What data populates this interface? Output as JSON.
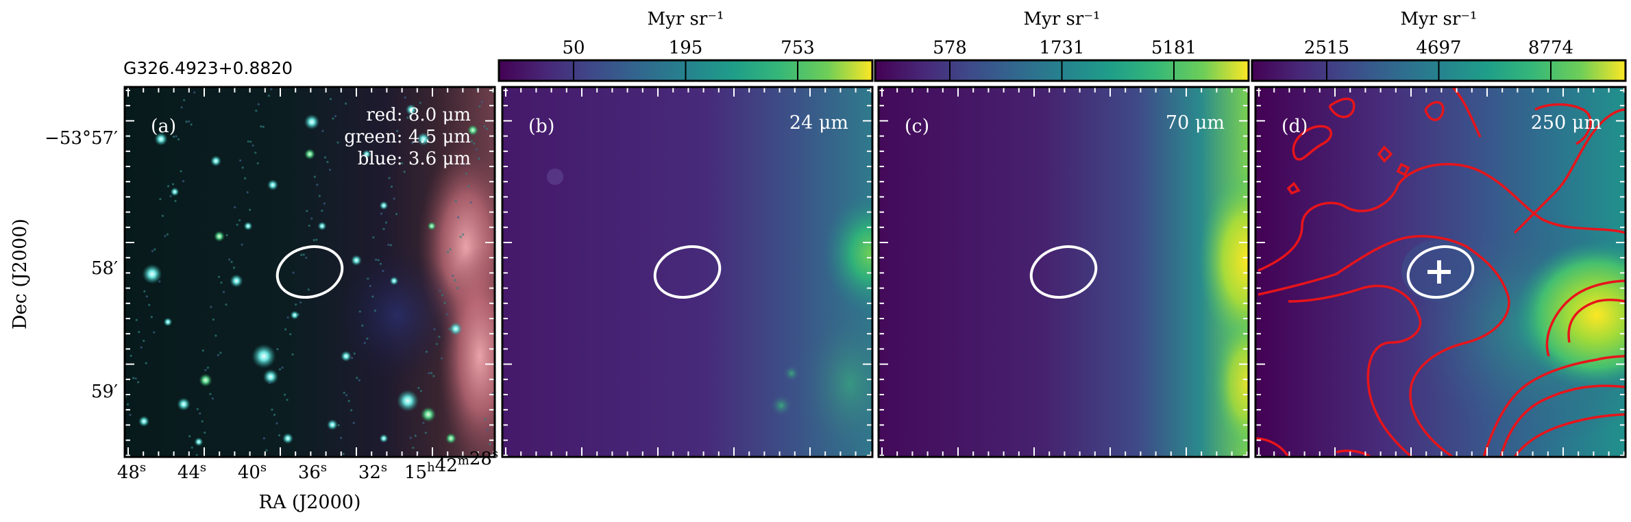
{
  "figure": {
    "source_name": "G326.4923+0.8820",
    "ra_axis_label": "RA (J2000)",
    "dec_axis_label": "Dec (J2000)",
    "ra_ticks": [
      {
        "main": "48",
        "sup": "s"
      },
      {
        "main": "44",
        "sup": "s"
      },
      {
        "main": "40",
        "sup": "s"
      },
      {
        "main": "36",
        "sup": "s"
      },
      {
        "main": "32",
        "sup": "s"
      },
      {
        "main": "15",
        "sup": "h",
        "main2": "42",
        "sup2": "m",
        "main3": "28",
        "sup3": "s"
      }
    ],
    "dec_ticks": [
      "−53°57′",
      "58′",
      "59′"
    ]
  },
  "colors": {
    "contour": "#e8141a",
    "ellipse": "#ffffff",
    "viridis_low": "#440154",
    "viridis_mid": "#21918c",
    "viridis_high": "#fde725"
  },
  "panels": [
    {
      "id": "a",
      "label": "(a)",
      "legend": [
        "red: 8.0 μm",
        "green: 4.5 μm",
        "blue: 3.6 μm"
      ],
      "image": "rgb-composite"
    },
    {
      "id": "b",
      "label": "(b)",
      "band": "24 μm",
      "image": "viridis-map",
      "colorbar": {
        "unit": "Myr sr⁻¹",
        "ticks": [
          "50",
          "195",
          "753"
        ]
      }
    },
    {
      "id": "c",
      "label": "(c)",
      "band": "70 μm",
      "image": "viridis-map",
      "colorbar": {
        "unit": "Myr sr⁻¹",
        "ticks": [
          "578",
          "1731",
          "5181"
        ]
      }
    },
    {
      "id": "d",
      "label": "(d)",
      "band": "250 μm",
      "image": "viridis-map-with-contours",
      "colorbar": {
        "unit": "Myr sr⁻¹",
        "ticks": [
          "2515",
          "4697",
          "8774"
        ]
      }
    }
  ]
}
